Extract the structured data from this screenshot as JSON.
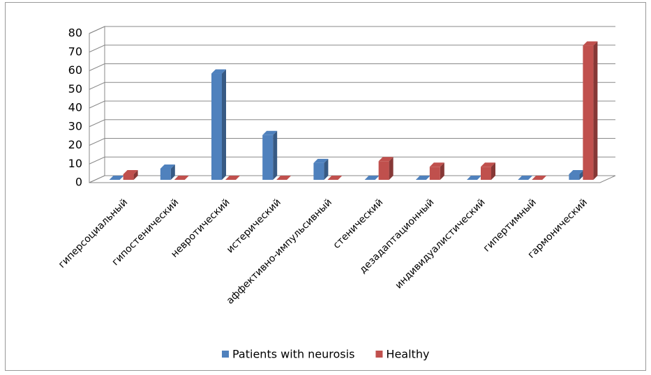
{
  "chart_data": {
    "type": "bar",
    "categories": [
      "гиперсоциальный",
      "гипостенический",
      "невротический",
      "истерический",
      "аффективно-импульсивный",
      "стенический",
      "дезадаптационный",
      "индивидуалистический",
      "гипертимный",
      "гармонический"
    ],
    "series": [
      {
        "name": "Patients with neurosis",
        "color": "#4f81bd",
        "values": [
          0,
          6,
          57,
          24,
          9,
          0,
          0,
          0,
          0,
          3
        ]
      },
      {
        "name": "Healthy",
        "color": "#c0504d",
        "values": [
          3,
          0,
          0,
          0,
          0,
          10,
          7,
          7,
          0,
          72
        ]
      }
    ],
    "ylim": [
      0,
      80
    ],
    "yticks": [
      0,
      10,
      20,
      30,
      40,
      50,
      60,
      70,
      80
    ],
    "grid": true,
    "legend": "bottom"
  }
}
